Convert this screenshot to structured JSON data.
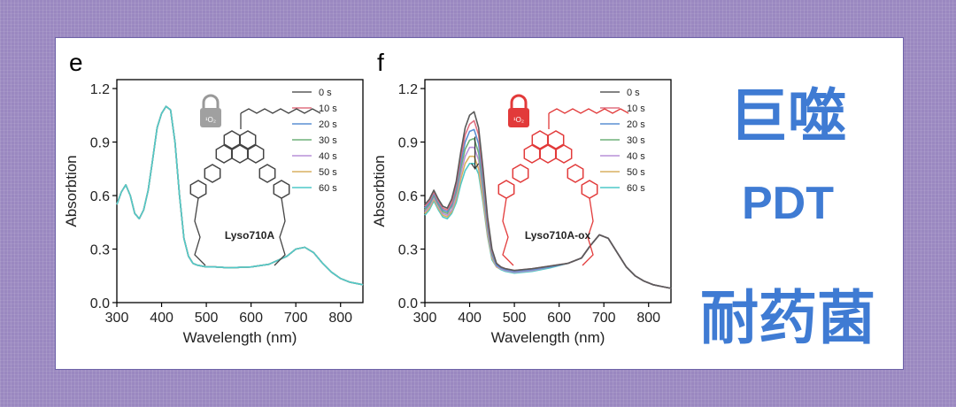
{
  "side_text": {
    "line1": "巨噬",
    "line2": "PDT",
    "line3": "耐药菌"
  },
  "legend_labels": [
    "0 s",
    "10 s",
    "20 s",
    "30 s",
    "40 s",
    "50 s",
    "60 s"
  ],
  "legend_colors": [
    "#5a5a5a",
    "#e07080",
    "#5b8fd4",
    "#6fb07a",
    "#b890d8",
    "#d8b060",
    "#4fc9c9"
  ],
  "chart_data": [
    {
      "type": "line",
      "panel_letter": "e",
      "title": "",
      "xlabel": "Wavelength (nm)",
      "ylabel": "Absorbtion",
      "xlim": [
        300,
        850
      ],
      "ylim": [
        0,
        1.25
      ],
      "xticks": [
        300,
        400,
        500,
        600,
        700,
        800
      ],
      "yticks": [
        0.0,
        0.3,
        0.6,
        0.9,
        1.2
      ],
      "x": [
        300,
        310,
        320,
        330,
        340,
        350,
        360,
        370,
        380,
        390,
        400,
        410,
        420,
        430,
        440,
        450,
        460,
        470,
        480,
        490,
        500,
        520,
        550,
        600,
        640,
        680,
        700,
        720,
        740,
        760,
        780,
        800,
        820,
        850
      ],
      "molecule_label": "Lyso710A",
      "series": [
        {
          "name": "0 s",
          "values": [
            0.55,
            0.62,
            0.66,
            0.6,
            0.5,
            0.47,
            0.52,
            0.63,
            0.8,
            0.98,
            1.06,
            1.1,
            1.08,
            0.9,
            0.6,
            0.36,
            0.26,
            0.22,
            0.21,
            0.205,
            0.2,
            0.2,
            0.195,
            0.2,
            0.215,
            0.26,
            0.3,
            0.31,
            0.28,
            0.22,
            0.17,
            0.135,
            0.115,
            0.1
          ]
        },
        {
          "name": "10 s",
          "values": [
            0.55,
            0.62,
            0.66,
            0.6,
            0.5,
            0.47,
            0.52,
            0.63,
            0.8,
            0.98,
            1.06,
            1.1,
            1.08,
            0.9,
            0.6,
            0.36,
            0.26,
            0.22,
            0.21,
            0.205,
            0.2,
            0.2,
            0.195,
            0.2,
            0.215,
            0.26,
            0.3,
            0.31,
            0.28,
            0.22,
            0.17,
            0.135,
            0.115,
            0.1
          ]
        },
        {
          "name": "20 s",
          "values": [
            0.55,
            0.62,
            0.66,
            0.6,
            0.5,
            0.47,
            0.52,
            0.63,
            0.8,
            0.98,
            1.06,
            1.1,
            1.08,
            0.9,
            0.6,
            0.36,
            0.26,
            0.22,
            0.21,
            0.205,
            0.2,
            0.2,
            0.195,
            0.2,
            0.215,
            0.26,
            0.3,
            0.31,
            0.28,
            0.22,
            0.17,
            0.135,
            0.115,
            0.1
          ]
        },
        {
          "name": "30 s",
          "values": [
            0.55,
            0.62,
            0.66,
            0.6,
            0.5,
            0.47,
            0.52,
            0.63,
            0.8,
            0.98,
            1.06,
            1.1,
            1.08,
            0.9,
            0.6,
            0.36,
            0.26,
            0.22,
            0.21,
            0.205,
            0.2,
            0.2,
            0.195,
            0.2,
            0.215,
            0.26,
            0.3,
            0.31,
            0.28,
            0.22,
            0.17,
            0.135,
            0.115,
            0.1
          ]
        },
        {
          "name": "40 s",
          "values": [
            0.55,
            0.62,
            0.66,
            0.6,
            0.5,
            0.47,
            0.52,
            0.63,
            0.8,
            0.98,
            1.06,
            1.1,
            1.08,
            0.9,
            0.6,
            0.36,
            0.26,
            0.22,
            0.21,
            0.205,
            0.2,
            0.2,
            0.195,
            0.2,
            0.215,
            0.26,
            0.3,
            0.31,
            0.28,
            0.22,
            0.17,
            0.135,
            0.115,
            0.1
          ]
        },
        {
          "name": "50 s",
          "values": [
            0.55,
            0.62,
            0.66,
            0.6,
            0.5,
            0.47,
            0.52,
            0.63,
            0.8,
            0.98,
            1.06,
            1.1,
            1.08,
            0.9,
            0.6,
            0.36,
            0.26,
            0.22,
            0.21,
            0.205,
            0.2,
            0.2,
            0.195,
            0.2,
            0.215,
            0.26,
            0.3,
            0.31,
            0.28,
            0.22,
            0.17,
            0.135,
            0.115,
            0.1
          ]
        },
        {
          "name": "60 s",
          "values": [
            0.55,
            0.62,
            0.66,
            0.6,
            0.5,
            0.47,
            0.52,
            0.63,
            0.8,
            0.98,
            1.06,
            1.1,
            1.08,
            0.9,
            0.6,
            0.36,
            0.26,
            0.22,
            0.21,
            0.205,
            0.2,
            0.2,
            0.195,
            0.2,
            0.215,
            0.26,
            0.3,
            0.31,
            0.28,
            0.22,
            0.17,
            0.135,
            0.115,
            0.1
          ]
        }
      ]
    },
    {
      "type": "line",
      "panel_letter": "f",
      "title": "",
      "xlabel": "Wavelength (nm)",
      "ylabel": "Absorbtion",
      "xlim": [
        300,
        850
      ],
      "ylim": [
        0,
        1.25
      ],
      "xticks": [
        300,
        400,
        500,
        600,
        700,
        800
      ],
      "yticks": [
        0.0,
        0.3,
        0.6,
        0.9,
        1.2
      ],
      "x": [
        300,
        310,
        320,
        330,
        340,
        350,
        360,
        370,
        380,
        390,
        400,
        410,
        420,
        430,
        440,
        450,
        460,
        470,
        480,
        500,
        540,
        580,
        620,
        650,
        670,
        690,
        710,
        730,
        750,
        770,
        790,
        810,
        830,
        850
      ],
      "molecule_label": "Lyso710A-ox",
      "series": [
        {
          "name": "0 s",
          "values": [
            0.55,
            0.58,
            0.63,
            0.58,
            0.54,
            0.53,
            0.58,
            0.68,
            0.84,
            0.98,
            1.05,
            1.07,
            0.98,
            0.75,
            0.48,
            0.3,
            0.22,
            0.2,
            0.19,
            0.18,
            0.19,
            0.205,
            0.22,
            0.25,
            0.32,
            0.38,
            0.36,
            0.28,
            0.2,
            0.15,
            0.12,
            0.1,
            0.09,
            0.08
          ]
        },
        {
          "name": "10 s",
          "values": [
            0.54,
            0.57,
            0.62,
            0.57,
            0.53,
            0.52,
            0.56,
            0.66,
            0.81,
            0.94,
            1.0,
            1.02,
            0.94,
            0.72,
            0.46,
            0.29,
            0.22,
            0.2,
            0.19,
            0.18,
            0.19,
            0.205,
            0.22,
            0.25,
            0.32,
            0.38,
            0.36,
            0.28,
            0.2,
            0.15,
            0.12,
            0.1,
            0.09,
            0.08
          ]
        },
        {
          "name": "20 s",
          "values": [
            0.53,
            0.56,
            0.61,
            0.56,
            0.52,
            0.51,
            0.55,
            0.64,
            0.78,
            0.9,
            0.96,
            0.97,
            0.89,
            0.68,
            0.44,
            0.28,
            0.21,
            0.195,
            0.185,
            0.175,
            0.185,
            0.2,
            0.22,
            0.25,
            0.32,
            0.38,
            0.36,
            0.28,
            0.2,
            0.15,
            0.12,
            0.1,
            0.09,
            0.08
          ]
        },
        {
          "name": "30 s",
          "values": [
            0.52,
            0.55,
            0.6,
            0.55,
            0.51,
            0.5,
            0.54,
            0.62,
            0.75,
            0.86,
            0.91,
            0.92,
            0.84,
            0.65,
            0.42,
            0.27,
            0.21,
            0.195,
            0.185,
            0.175,
            0.185,
            0.2,
            0.22,
            0.25,
            0.32,
            0.38,
            0.36,
            0.28,
            0.2,
            0.15,
            0.12,
            0.1,
            0.09,
            0.08
          ]
        },
        {
          "name": "40 s",
          "values": [
            0.51,
            0.54,
            0.59,
            0.54,
            0.5,
            0.49,
            0.52,
            0.6,
            0.72,
            0.82,
            0.87,
            0.87,
            0.8,
            0.62,
            0.4,
            0.26,
            0.205,
            0.19,
            0.18,
            0.17,
            0.18,
            0.2,
            0.22,
            0.25,
            0.32,
            0.38,
            0.36,
            0.28,
            0.2,
            0.15,
            0.12,
            0.1,
            0.09,
            0.08
          ]
        },
        {
          "name": "50 s",
          "values": [
            0.5,
            0.53,
            0.58,
            0.53,
            0.49,
            0.48,
            0.51,
            0.58,
            0.69,
            0.78,
            0.82,
            0.82,
            0.75,
            0.58,
            0.38,
            0.25,
            0.2,
            0.19,
            0.18,
            0.17,
            0.18,
            0.2,
            0.22,
            0.25,
            0.32,
            0.38,
            0.36,
            0.28,
            0.2,
            0.15,
            0.12,
            0.1,
            0.09,
            0.08
          ]
        },
        {
          "name": "60 s",
          "values": [
            0.49,
            0.52,
            0.57,
            0.52,
            0.48,
            0.47,
            0.5,
            0.56,
            0.66,
            0.74,
            0.78,
            0.78,
            0.72,
            0.56,
            0.37,
            0.24,
            0.2,
            0.185,
            0.175,
            0.165,
            0.175,
            0.195,
            0.22,
            0.25,
            0.32,
            0.38,
            0.36,
            0.28,
            0.2,
            0.15,
            0.12,
            0.1,
            0.09,
            0.08
          ]
        }
      ]
    }
  ]
}
